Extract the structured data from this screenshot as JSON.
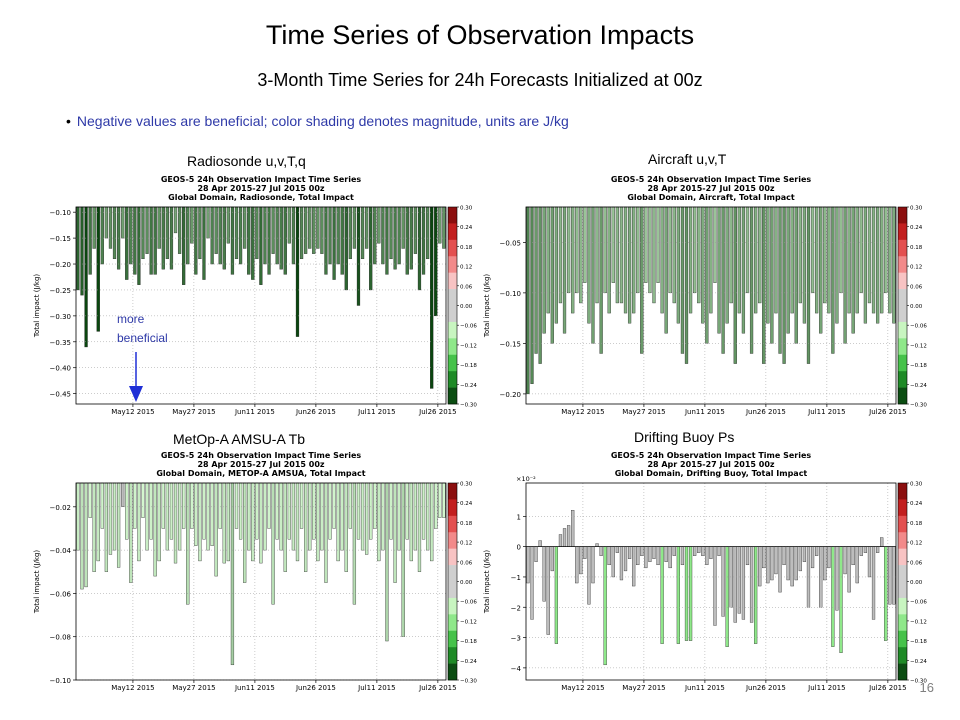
{
  "slide": {
    "title": "Time Series of Observation Impacts",
    "subtitle": "3-Month Time Series for 24h Forecasts Initialized at 00z",
    "note": "Negative values are beneficial; color shading denotes magnitude, units are J/kg",
    "page_number": "16",
    "annotation": [
      "more",
      "beneficial"
    ]
  },
  "colors": {
    "arrow": "#1f2fd6",
    "gray_bar": "#bdbdbd",
    "colorbar": [
      "#8b0e0e",
      "#c21f1f",
      "#e35050",
      "#f28a8a",
      "#f8c3c3",
      "#cfcfcf",
      "#cfcfcf",
      "#c8f5c0",
      "#8fe88a",
      "#46c24a",
      "#1e8a26",
      "#0b4d12"
    ]
  },
  "chart_data": [
    {
      "type": "bar",
      "panel_label": "Radiosonde   u,v,T,q",
      "title": [
        "GEOS-5 24h Observation Impact Time Series",
        "28 Apr 2015-27 Jul 2015 00z",
        "Global Domain, Radiosonde, Total Impact"
      ],
      "ylabel": "Total impact (J/kg)",
      "ylim": [
        -0.47,
        -0.09
      ],
      "yticks": [
        -0.1,
        -0.15,
        -0.2,
        -0.25,
        -0.3,
        -0.35,
        -0.4,
        -0.45
      ],
      "ytick_labels": [
        "−0.10",
        "−0.15",
        "−0.20",
        "−0.25",
        "−0.30",
        "−0.35",
        "−0.40",
        "−0.45"
      ],
      "xticks": [
        {
          "day": 14,
          "label": "May12 2015"
        },
        {
          "day": 29,
          "label": "May27 2015"
        },
        {
          "day": 44,
          "label": "Jun11 2015"
        },
        {
          "day": 59,
          "label": "Jun26 2015"
        },
        {
          "day": 74,
          "label": "Jul11 2015"
        },
        {
          "day": 89,
          "label": "Jul26 2015"
        }
      ],
      "grid": true,
      "colorbar_ticks": [
        "0.30",
        "0.24",
        "0.18",
        "0.12",
        "0.06",
        "0.00",
        "−0.06",
        "−0.12",
        "−0.18",
        "−0.24",
        "−0.30"
      ],
      "values": [
        -0.25,
        -0.26,
        -0.36,
        -0.22,
        -0.17,
        -0.33,
        -0.2,
        -0.15,
        -0.17,
        -0.19,
        -0.21,
        -0.15,
        -0.23,
        -0.2,
        -0.22,
        -0.24,
        -0.19,
        -0.18,
        -0.22,
        -0.22,
        -0.17,
        -0.21,
        -0.19,
        -0.21,
        -0.14,
        -0.18,
        -0.24,
        -0.2,
        -0.16,
        -0.22,
        -0.19,
        -0.23,
        -0.15,
        -0.2,
        -0.18,
        -0.2,
        -0.21,
        -0.16,
        -0.22,
        -0.19,
        -0.2,
        -0.17,
        -0.22,
        -0.23,
        -0.19,
        -0.24,
        -0.2,
        -0.22,
        -0.18,
        -0.2,
        -0.21,
        -0.22,
        -0.16,
        -0.2,
        -0.34,
        -0.19,
        -0.18,
        -0.17,
        -0.18,
        -0.17,
        -0.18,
        -0.22,
        -0.2,
        -0.23,
        -0.2,
        -0.22,
        -0.25,
        -0.19,
        -0.17,
        -0.28,
        -0.19,
        -0.17,
        -0.25,
        -0.2,
        -0.16,
        -0.2,
        -0.22,
        -0.19,
        -0.21,
        -0.2,
        -0.17,
        -0.22,
        -0.21,
        -0.18,
        -0.25,
        -0.22,
        -0.19,
        -0.44,
        -0.3,
        -0.16,
        -0.17
      ]
    },
    {
      "type": "bar",
      "panel_label": "Aircraft   u,v,T",
      "title": [
        "GEOS-5 24h Observation Impact Time Series",
        "28 Apr 2015-27 Jul 2015 00z",
        "Global Domain, Aircraft, Total Impact"
      ],
      "ylabel": "Total impact (J/kg)",
      "ylim": [
        -0.21,
        -0.015
      ],
      "yticks": [
        -0.05,
        -0.1,
        -0.15,
        -0.2
      ],
      "ytick_labels": [
        "−0.05",
        "−0.10",
        "−0.15",
        "−0.20"
      ],
      "xticks": [
        {
          "day": 14,
          "label": "May12 2015"
        },
        {
          "day": 29,
          "label": "May27 2015"
        },
        {
          "day": 44,
          "label": "Jun11 2015"
        },
        {
          "day": 59,
          "label": "Jun26 2015"
        },
        {
          "day": 74,
          "label": "Jul11 2015"
        },
        {
          "day": 89,
          "label": "Jul26 2015"
        }
      ],
      "grid": true,
      "colorbar_ticks": [
        "0.30",
        "0.24",
        "0.18",
        "0.12",
        "0.06",
        "0.00",
        "−0.06",
        "−0.12",
        "−0.18",
        "−0.24",
        "−0.30"
      ],
      "values": [
        -0.2,
        -0.19,
        -0.16,
        -0.17,
        -0.14,
        -0.12,
        -0.15,
        -0.13,
        -0.11,
        -0.14,
        -0.1,
        -0.12,
        -0.1,
        -0.11,
        -0.09,
        -0.13,
        -0.15,
        -0.11,
        -0.16,
        -0.1,
        -0.12,
        -0.09,
        -0.11,
        -0.11,
        -0.12,
        -0.13,
        -0.12,
        -0.1,
        -0.16,
        -0.09,
        -0.1,
        -0.11,
        -0.09,
        -0.12,
        -0.14,
        -0.1,
        -0.11,
        -0.13,
        -0.16,
        -0.17,
        -0.12,
        -0.1,
        -0.11,
        -0.13,
        -0.15,
        -0.12,
        -0.09,
        -0.14,
        -0.16,
        -0.13,
        -0.11,
        -0.17,
        -0.12,
        -0.14,
        -0.1,
        -0.16,
        -0.12,
        -0.11,
        -0.17,
        -0.13,
        -0.15,
        -0.12,
        -0.16,
        -0.17,
        -0.14,
        -0.12,
        -0.15,
        -0.11,
        -0.13,
        -0.17,
        -0.1,
        -0.12,
        -0.14,
        -0.11,
        -0.12,
        -0.16,
        -0.13,
        -0.1,
        -0.15,
        -0.12,
        -0.14,
        -0.12,
        -0.1,
        -0.13,
        -0.11,
        -0.12,
        -0.13,
        -0.12,
        -0.1,
        -0.12,
        -0.13
      ]
    },
    {
      "type": "bar",
      "panel_label": "MetOp-A AMSU-A  Tb",
      "title": [
        "GEOS-5 24h Observation Impact Time Series",
        "28 Apr 2015-27 Jul 2015 00z",
        "Global Domain, METOP-A AMSUA, Total Impact"
      ],
      "ylabel": "Total impact (J/kg)",
      "ylim": [
        -0.1,
        -0.009
      ],
      "yticks": [
        -0.02,
        -0.04,
        -0.06,
        -0.08,
        -0.1
      ],
      "ytick_labels": [
        "−0.02",
        "−0.04",
        "−0.06",
        "−0.08",
        "−0.10"
      ],
      "xticks": [
        {
          "day": 14,
          "label": "May12 2015"
        },
        {
          "day": 29,
          "label": "May27 2015"
        },
        {
          "day": 44,
          "label": "Jun11 2015"
        },
        {
          "day": 59,
          "label": "Jun26 2015"
        },
        {
          "day": 74,
          "label": "Jul11 2015"
        },
        {
          "day": 89,
          "label": "Jul26 2015"
        }
      ],
      "grid": true,
      "colorbar_ticks": [
        "0.30",
        "0.24",
        "0.18",
        "0.12",
        "0.06",
        "0.00",
        "−0.06",
        "−0.12",
        "−0.18",
        "−0.24",
        "−0.30"
      ],
      "values": [
        -0.04,
        -0.058,
        -0.057,
        -0.025,
        -0.05,
        -0.045,
        -0.03,
        -0.05,
        -0.042,
        -0.04,
        -0.048,
        -0.02,
        -0.035,
        -0.055,
        -0.03,
        -0.045,
        -0.025,
        -0.04,
        -0.035,
        -0.052,
        -0.045,
        -0.03,
        -0.04,
        -0.035,
        -0.046,
        -0.04,
        -0.03,
        -0.065,
        -0.03,
        -0.038,
        -0.045,
        -0.035,
        -0.04,
        -0.038,
        -0.052,
        -0.03,
        -0.046,
        -0.045,
        -0.093,
        -0.03,
        -0.035,
        -0.055,
        -0.04,
        -0.045,
        -0.035,
        -0.046,
        -0.04,
        -0.03,
        -0.065,
        -0.035,
        -0.04,
        -0.05,
        -0.035,
        -0.04,
        -0.045,
        -0.03,
        -0.05,
        -0.04,
        -0.035,
        -0.045,
        -0.04,
        -0.055,
        -0.035,
        -0.03,
        -0.045,
        -0.04,
        -0.05,
        -0.03,
        -0.065,
        -0.035,
        -0.04,
        -0.042,
        -0.035,
        -0.03,
        -0.045,
        -0.04,
        -0.082,
        -0.035,
        -0.055,
        -0.04,
        -0.08,
        -0.035,
        -0.045,
        -0.04,
        -0.05,
        -0.035,
        -0.04,
        -0.045,
        -0.03,
        -0.025,
        -0.025
      ]
    },
    {
      "type": "bar",
      "panel_label": "Drifting Buoy  Ps",
      "title": [
        "GEOS-5 24h Observation Impact Time Series",
        "28 Apr 2015-27 Jul 2015 00z",
        "Global Domain, Drifting Buoy, Total Impact"
      ],
      "ylabel": "Total impact (J/kg)",
      "y_scale_label": "×10⁻²",
      "ylim": [
        -4.4,
        2.1
      ],
      "yticks": [
        1,
        0,
        -1,
        -2,
        -3,
        -4
      ],
      "ytick_labels": [
        "1",
        "0",
        "−1",
        "−2",
        "−3",
        "−4"
      ],
      "xticks": [
        {
          "day": 14,
          "label": "May12 2015"
        },
        {
          "day": 29,
          "label": "May27 2015"
        },
        {
          "day": 44,
          "label": "Jun11 2015"
        },
        {
          "day": 59,
          "label": "Jun26 2015"
        },
        {
          "day": 74,
          "label": "Jul11 2015"
        },
        {
          "day": 89,
          "label": "Jul26 2015"
        }
      ],
      "grid": true,
      "colorbar_ticks": [
        "0.30",
        "0.24",
        "0.18",
        "0.12",
        "0.06",
        "0.00",
        "−0.06",
        "−0.12",
        "−0.18",
        "−0.24",
        "−0.30"
      ],
      "values": [
        -1.2,
        -2.4,
        -0.5,
        0.2,
        -1.8,
        -2.9,
        -0.8,
        -3.2,
        0.4,
        0.6,
        0.7,
        1.2,
        -1.2,
        -0.9,
        -0.4,
        -1.9,
        -1.2,
        0.1,
        -0.3,
        -3.9,
        -0.6,
        -1.0,
        -0.2,
        -1.1,
        -0.8,
        -0.4,
        -1.3,
        -0.6,
        -0.3,
        -0.7,
        -0.5,
        -0.4,
        -0.6,
        -3.2,
        -0.5,
        -0.7,
        -0.3,
        -3.2,
        -0.6,
        -3.1,
        -3.1,
        -0.3,
        -0.2,
        -0.3,
        -0.6,
        -0.4,
        -2.6,
        -0.3,
        -2.3,
        -3.3,
        -2.0,
        -2.5,
        -2.2,
        -2.4,
        -0.6,
        -2.5,
        -3.2,
        -1.3,
        -0.7,
        -1.2,
        -1.1,
        -0.9,
        -1.5,
        -0.6,
        -1.1,
        -1.3,
        -1.1,
        -0.8,
        -0.5,
        -2.0,
        -0.7,
        -0.3,
        -2.0,
        -1.1,
        -0.7,
        -3.3,
        -2.1,
        -3.5,
        -0.9,
        -1.5,
        -0.6,
        -1.2,
        -0.3,
        -0.2,
        -1.0,
        -2.4,
        -0.2,
        0.3,
        -3.1,
        -1.9,
        -1.9
      ]
    }
  ]
}
